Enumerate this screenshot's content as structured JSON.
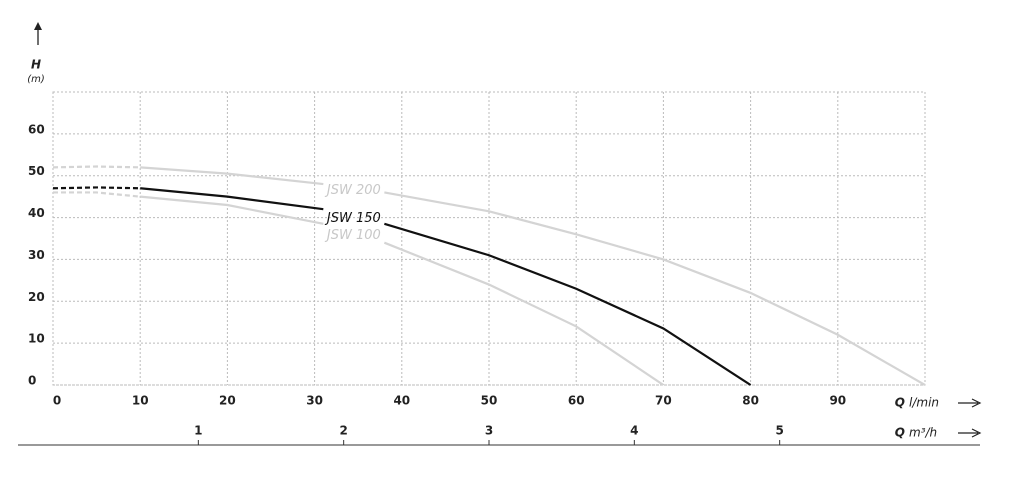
{
  "chart_data": {
    "type": "line",
    "y_label": "H",
    "y_unit": "(m)",
    "x_label": "Q",
    "x_unit": "l/min",
    "x2_label": "Q",
    "x2_unit": "m³/h",
    "xlim": [
      0,
      100
    ],
    "xticks": [
      0,
      10,
      20,
      30,
      40,
      50,
      60,
      70,
      80,
      90
    ],
    "ylim": [
      0,
      70
    ],
    "yticks": [
      0,
      10,
      20,
      30,
      40,
      50,
      60
    ],
    "x2lim": [
      0,
      6
    ],
    "x2ticks": [
      1,
      2,
      3,
      4,
      5
    ],
    "grid": true,
    "dash_until_x": 10,
    "series": [
      {
        "name": "JSW 200",
        "color": "#d4d4d4",
        "x": [
          0,
          5,
          10,
          20,
          31,
          34.5,
          38,
          50,
          60,
          70,
          80,
          90,
          100
        ],
        "values": [
          52,
          52.2,
          52,
          50.5,
          48,
          null,
          46,
          41.5,
          36,
          30,
          22,
          12,
          0
        ]
      },
      {
        "name": "JSW 150",
        "color": "#111111",
        "x": [
          0,
          5,
          10,
          20,
          31,
          34.5,
          38,
          50,
          60,
          70,
          80
        ],
        "values": [
          47,
          47.2,
          47,
          45,
          42,
          null,
          38.5,
          31,
          23,
          13.5,
          0
        ]
      },
      {
        "name": "JSW 100",
        "color": "#d4d4d4",
        "x": [
          0,
          5,
          10,
          20,
          31,
          34.5,
          38,
          50,
          60,
          70
        ],
        "values": [
          46,
          46,
          45,
          43,
          38.5,
          null,
          34,
          24,
          14,
          0
        ]
      }
    ]
  }
}
